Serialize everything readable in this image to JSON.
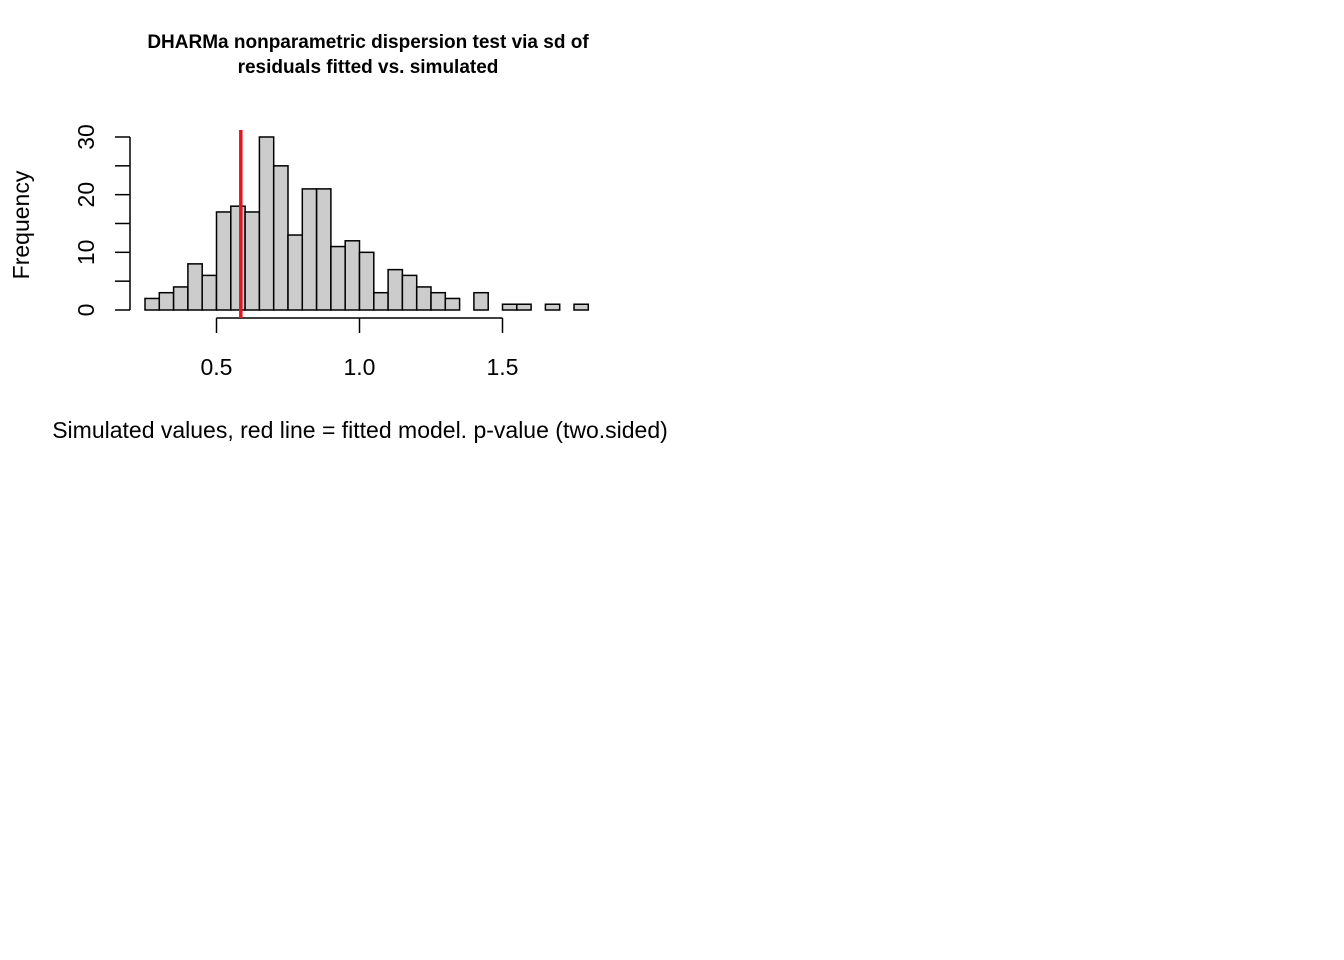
{
  "chart_data": {
    "type": "bar",
    "title_lines": [
      "DHARMa nonparametric dispersion test via sd of",
      "residuals fitted vs. simulated"
    ],
    "xlabel": "Simulated values, red line = fitted model. p-value (two.sided)",
    "ylabel": "Frequency",
    "bin_start": 0.25,
    "bin_width": 0.05,
    "counts": [
      2,
      3,
      4,
      8,
      6,
      17,
      18,
      17,
      30,
      25,
      13,
      21,
      21,
      11,
      12,
      10,
      3,
      7,
      6,
      4,
      3,
      2,
      0,
      3,
      0,
      1,
      1,
      0,
      1,
      0,
      1
    ],
    "xlim": [
      0.25,
      1.8
    ],
    "ylim": [
      0,
      30
    ],
    "x_ticks": [
      0.5,
      1.0,
      1.5
    ],
    "x_tick_labels": [
      "0.5",
      "1.0",
      "1.5"
    ],
    "y_ticks": [
      0,
      5,
      10,
      15,
      20,
      25,
      30
    ],
    "y_tick_labels": [
      "0",
      "10",
      "20",
      "30"
    ],
    "y_labeled_ticks": [
      0,
      10,
      20,
      30
    ],
    "observed_value": 0.585,
    "bar_color": "#cccccc",
    "line_color": "#e8141c",
    "grid": false
  }
}
